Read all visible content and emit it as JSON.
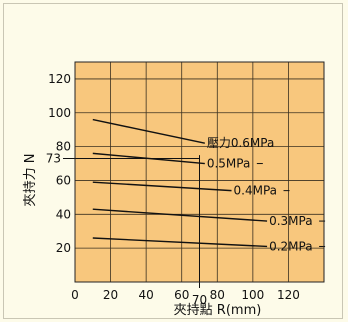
{
  "chart_data": {
    "type": "line",
    "xlabel": "夾持點 R(mm)",
    "ylabel": "夾持力 N",
    "xlim": [
      0,
      140
    ],
    "ylim": [
      0,
      130
    ],
    "x_ticks": [
      0,
      20,
      40,
      60,
      80,
      100,
      120
    ],
    "y_ticks": [
      20,
      40,
      60,
      80,
      100,
      120
    ],
    "grid": true,
    "background": "#f8c77d",
    "series": [
      {
        "name": "壓力0.6MPa",
        "x": [
          10,
          73
        ],
        "y": [
          96,
          82
        ]
      },
      {
        "name": "0.5MPa",
        "x": [
          10,
          73
        ],
        "y": [
          76,
          70
        ]
      },
      {
        "name": "0.4MPa",
        "x": [
          10,
          88
        ],
        "y": [
          59,
          54
        ]
      },
      {
        "name": "0.3MPa",
        "x": [
          10,
          108
        ],
        "y": [
          43,
          36
        ]
      },
      {
        "name": "0.2MPa",
        "x": [
          10,
          108
        ],
        "y": [
          26,
          21
        ]
      }
    ],
    "annotations": [
      {
        "text": "73",
        "axis": "y",
        "value": 73
      },
      {
        "text": "70",
        "axis": "x",
        "value": 70
      }
    ]
  }
}
